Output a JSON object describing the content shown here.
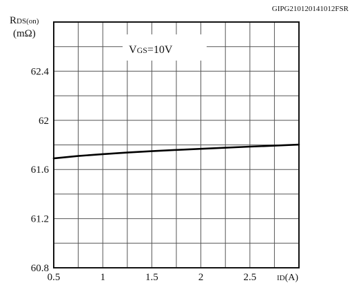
{
  "chart_data": {
    "type": "line",
    "code": "GIPG210120141012FSR",
    "ylabel": {
      "main": "R",
      "sub": "DS(on)",
      "unit": "(mΩ)"
    },
    "xlabel": {
      "main": "I",
      "sub": "D",
      "unit": "(A)"
    },
    "annotation": {
      "main": "V",
      "sub": "GS",
      "rest": "=10V"
    },
    "xlim": [
      0.5,
      3.0
    ],
    "ylim": [
      60.8,
      62.8
    ],
    "x_ticks": [
      0.5,
      1,
      1.5,
      2,
      2.5
    ],
    "x_tick_labels": [
      "0.5",
      "1",
      "1.5",
      "2",
      "2.5"
    ],
    "y_ticks": [
      60.8,
      61.2,
      61.6,
      62,
      62.4
    ],
    "y_tick_labels": [
      "60.8",
      "61.2",
      "61.6",
      "62",
      "62.4"
    ],
    "grid": true,
    "series": [
      {
        "x": [
          0.5,
          0.75,
          1.0,
          1.25,
          1.5,
          1.75,
          2.0,
          2.25,
          2.5,
          2.75,
          3.0
        ],
        "values": [
          61.69,
          61.71,
          61.725,
          61.738,
          61.749,
          61.759,
          61.768,
          61.777,
          61.786,
          61.794,
          61.802
        ]
      }
    ]
  }
}
